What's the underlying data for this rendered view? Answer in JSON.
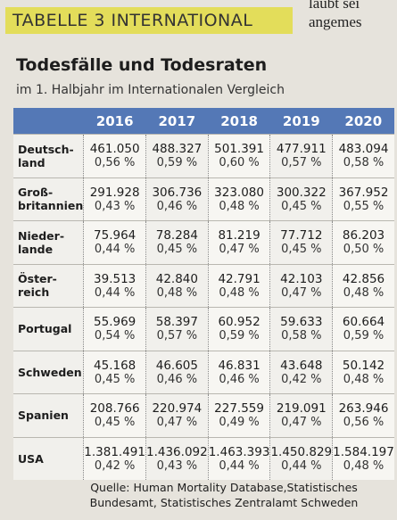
{
  "banner": "TABELLE 3 INTERNATIONAL",
  "side_text": [
    "laubt sei",
    "angemes"
  ],
  "title": "Todesfälle und Todesraten",
  "subtitle": "im 1. Halbjahr im Internationalen Vergleich",
  "table": {
    "columns": [
      "2016",
      "2017",
      "2018",
      "2019",
      "2020"
    ],
    "rows": [
      {
        "label": "Deutsch-\nland",
        "cells": [
          [
            "461.050",
            "0,56 %"
          ],
          [
            "488.327",
            "0,59 %"
          ],
          [
            "501.391",
            "0,60 %"
          ],
          [
            "477.911",
            "0,57 %"
          ],
          [
            "483.094",
            "0,58 %"
          ]
        ]
      },
      {
        "label": "Groß-\nbritannien",
        "cells": [
          [
            "291.928",
            "0,43 %"
          ],
          [
            "306.736",
            "0,46 %"
          ],
          [
            "323.080",
            "0,48 %"
          ],
          [
            "300.322",
            "0,45 %"
          ],
          [
            "367.952",
            "0,55 %"
          ]
        ]
      },
      {
        "label": "Nieder-\nlande",
        "cells": [
          [
            "75.964",
            "0,44 %"
          ],
          [
            "78.284",
            "0,45 %"
          ],
          [
            "81.219",
            "0,47 %"
          ],
          [
            "77.712",
            "0,45 %"
          ],
          [
            "86.203",
            "0,50 %"
          ]
        ]
      },
      {
        "label": "Öster-\nreich",
        "cells": [
          [
            "39.513",
            "0,44 %"
          ],
          [
            "42.840",
            "0,48 %"
          ],
          [
            "42.791",
            "0,48 %"
          ],
          [
            "42.103",
            "0,47 %"
          ],
          [
            "42.856",
            "0,48 %"
          ]
        ]
      },
      {
        "label": "Portugal",
        "cells": [
          [
            "55.969",
            "0,54 %"
          ],
          [
            "58.397",
            "0,57 %"
          ],
          [
            "60.952",
            "0,59 %"
          ],
          [
            "59.633",
            "0,58 %"
          ],
          [
            "60.664",
            "0,59 %"
          ]
        ]
      },
      {
        "label": "Schweden",
        "cells": [
          [
            "45.168",
            "0,45 %"
          ],
          [
            "46.605",
            "0,46 %"
          ],
          [
            "46.831",
            "0,46 %"
          ],
          [
            "43.648",
            "0,42 %"
          ],
          [
            "50.142",
            "0,48 %"
          ]
        ]
      },
      {
        "label": "Spanien",
        "cells": [
          [
            "208.766",
            "0,45 %"
          ],
          [
            "220.974",
            "0,47 %"
          ],
          [
            "227.559",
            "0,49 %"
          ],
          [
            "219.091",
            "0,47 %"
          ],
          [
            "263.946",
            "0,56 %"
          ]
        ]
      },
      {
        "label": "USA",
        "cells": [
          [
            "1.381.491",
            "0,42 %"
          ],
          [
            "1.436.092",
            "0,43 %"
          ],
          [
            "1.463.393",
            "0,44 %"
          ],
          [
            "1.450.829",
            "0,44 %"
          ],
          [
            "1.584.197",
            "0,48 %"
          ]
        ]
      }
    ]
  },
  "source": "Quelle: Human Mortality Database,Statistisches Bundesamt, Statistisches Zentralamt Schweden"
}
